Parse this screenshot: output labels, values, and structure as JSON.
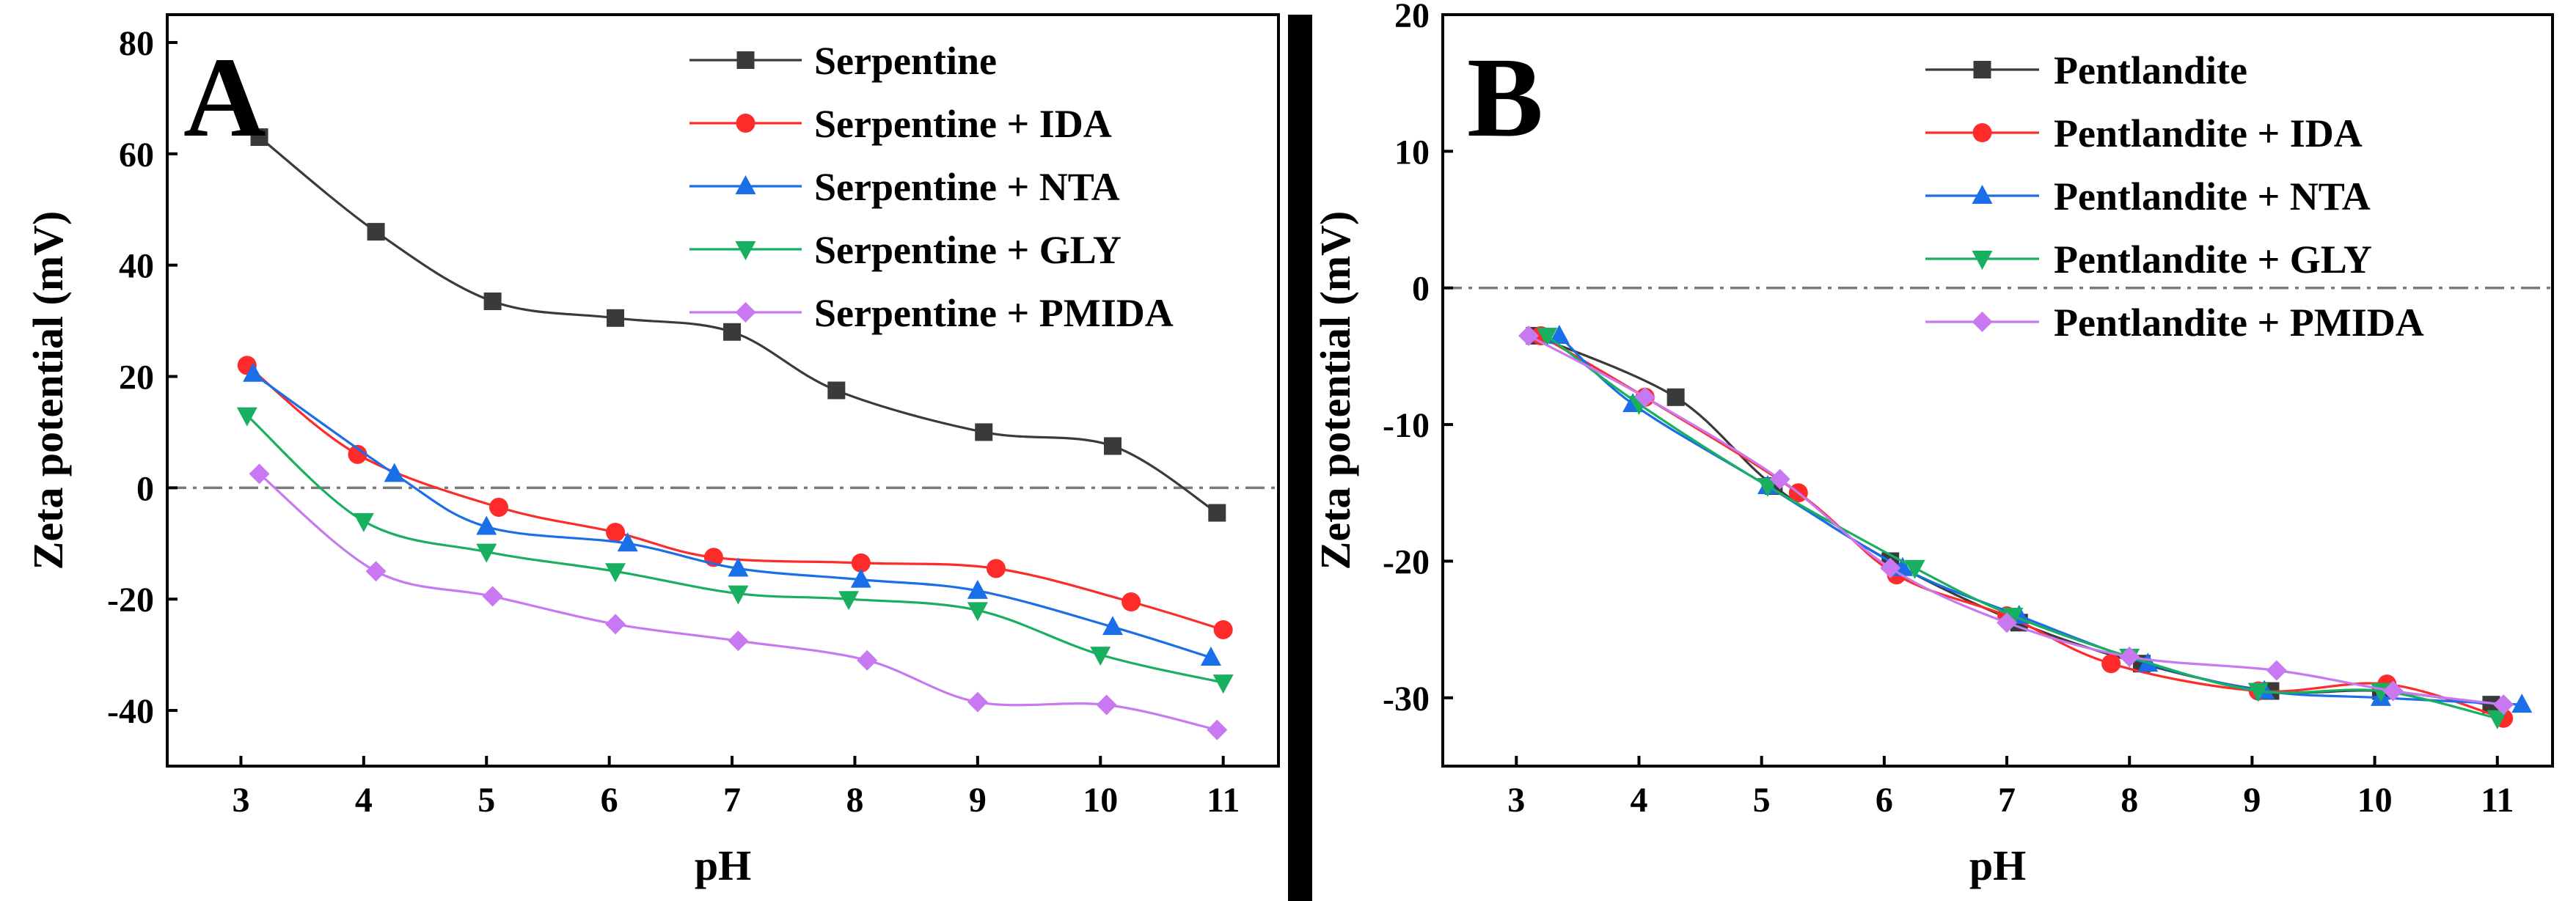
{
  "chart_data": [
    {
      "type": "line",
      "panel_label": "A",
      "xlabel": "pH",
      "ylabel": "Zeta potential (mV)",
      "xlim": [
        2.4,
        11.45
      ],
      "ylim": [
        -50,
        85
      ],
      "xticks": [
        3,
        4,
        5,
        6,
        7,
        8,
        9,
        10,
        11
      ],
      "yticks": [
        -40,
        -20,
        0,
        20,
        40,
        60,
        80
      ],
      "reference_line": {
        "y": 0,
        "style": "dash-dot"
      },
      "legend_position": "top-right",
      "series": [
        {
          "name": "Serpentine",
          "color": "#3a3a3a",
          "marker": "square",
          "x": [
            3.15,
            4.1,
            5.05,
            6.05,
            7.0,
            7.85,
            9.05,
            10.1,
            10.95
          ],
          "y": [
            63,
            46,
            33.5,
            30.5,
            28,
            17.5,
            10,
            7.5,
            -4.5
          ]
        },
        {
          "name": "Serpentine + IDA",
          "color": "#ff2a2a",
          "marker": "circle",
          "x": [
            3.05,
            3.95,
            5.1,
            6.05,
            6.85,
            8.05,
            9.15,
            10.25,
            11.0
          ],
          "y": [
            22,
            6,
            -3.5,
            -8,
            -12.5,
            -13.5,
            -14.5,
            -20.5,
            -25.5
          ]
        },
        {
          "name": "Serpentine + NTA",
          "color": "#1a6ee8",
          "marker": "triangle-up",
          "x": [
            3.1,
            4.25,
            5.0,
            6.15,
            7.05,
            8.05,
            9.0,
            10.1,
            10.9
          ],
          "y": [
            20.5,
            2.5,
            -7,
            -10,
            -14.5,
            -16.5,
            -18.5,
            -25,
            -30.5
          ]
        },
        {
          "name": "Serpentine + GLY",
          "color": "#18b060",
          "marker": "triangle-down",
          "x": [
            3.05,
            4.0,
            5.0,
            6.05,
            7.05,
            7.95,
            9.0,
            10.0,
            11.0
          ],
          "y": [
            13,
            -6,
            -11.5,
            -15,
            -19,
            -20,
            -22,
            -30,
            -35
          ]
        },
        {
          "name": "Serpentine + PMIDA",
          "color": "#c878f0",
          "marker": "diamond",
          "x": [
            3.15,
            4.1,
            5.05,
            6.05,
            7.05,
            8.1,
            9.0,
            10.05,
            10.95
          ],
          "y": [
            2.5,
            -15,
            -19.5,
            -24.5,
            -27.5,
            -31,
            -38.5,
            -39,
            -43.5
          ]
        }
      ]
    },
    {
      "type": "line",
      "panel_label": "B",
      "xlabel": "pH",
      "ylabel": "Zeta potential (mV)",
      "xlim": [
        2.4,
        11.45
      ],
      "ylim": [
        -35,
        20
      ],
      "xticks": [
        3,
        4,
        5,
        6,
        7,
        8,
        9,
        10,
        11
      ],
      "yticks": [
        -30,
        -20,
        -10,
        0,
        10,
        20
      ],
      "reference_line": {
        "y": 0,
        "style": "dash-dot"
      },
      "legend_position": "top-right",
      "series": [
        {
          "name": "Pentlandite",
          "color": "#3a3a3a",
          "marker": "square",
          "x": [
            3.15,
            4.3,
            5.1,
            6.05,
            7.1,
            8.1,
            9.15,
            10.05,
            10.95
          ],
          "y": [
            -3.5,
            -8,
            -14.5,
            -20,
            -24.5,
            -27.5,
            -29.5,
            -29.5,
            -30.5
          ]
        },
        {
          "name": "Pentlandite + IDA",
          "color": "#ff2a2a",
          "marker": "circle",
          "x": [
            3.2,
            4.05,
            5.3,
            6.1,
            7.0,
            7.85,
            9.05,
            10.1,
            11.05
          ],
          "y": [
            -3.5,
            -8,
            -15,
            -21,
            -24,
            -27.5,
            -29.5,
            -29,
            -31.5
          ]
        },
        {
          "name": "Pentlandite + NTA",
          "color": "#1a6ee8",
          "marker": "triangle-up",
          "x": [
            3.35,
            3.95,
            5.05,
            6.15,
            7.1,
            8.15,
            9.1,
            10.05,
            11.2
          ],
          "y": [
            -3.5,
            -8.5,
            -14.5,
            -20.5,
            -24,
            -27.5,
            -29.5,
            -30,
            -30.5
          ]
        },
        {
          "name": "Pentlandite + GLY",
          "color": "#18b060",
          "marker": "triangle-down",
          "x": [
            3.25,
            4.0,
            5.05,
            6.25,
            7.05,
            8.0,
            9.05,
            10.05,
            11.0
          ],
          "y": [
            -3.5,
            -8.5,
            -14.5,
            -20.5,
            -24,
            -27,
            -29.5,
            -29.5,
            -31.5
          ]
        },
        {
          "name": "Pentlandite + PMIDA",
          "color": "#c878f0",
          "marker": "diamond",
          "x": [
            3.1,
            4.05,
            5.15,
            6.05,
            7.0,
            8.0,
            9.2,
            10.15,
            11.05
          ],
          "y": [
            -3.5,
            -8,
            -14,
            -20.5,
            -24.5,
            -27,
            -28,
            -29.5,
            -30.5
          ]
        }
      ]
    }
  ]
}
